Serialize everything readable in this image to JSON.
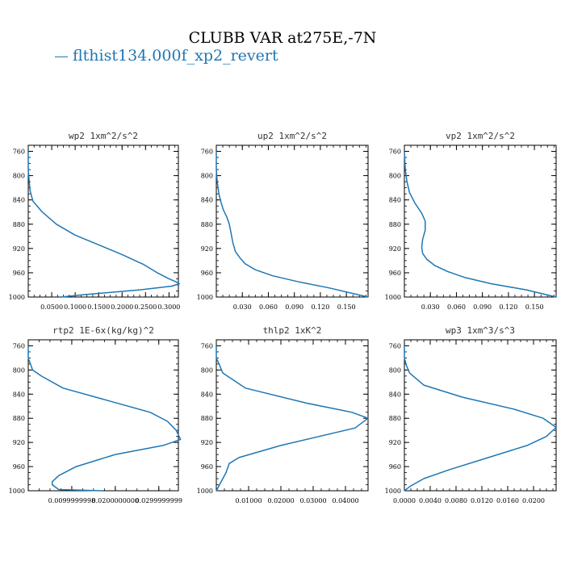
{
  "title": "CLUBB VAR at275E,-7N",
  "legend": [
    {
      "name": "flthist134.000f_xp2_revert",
      "color": "#1f77b4"
    }
  ],
  "chart_data": [
    {
      "type": "line",
      "title": "wp2  1xm^2/s^2",
      "ylim": [
        1000,
        750
      ],
      "xlim": [
        0,
        0.32
      ],
      "xticks": [
        0.05,
        0.1,
        0.15,
        0.2,
        0.25,
        0.3
      ],
      "xtick_labels": [
        "0.0500",
        "0.1000",
        "0.1500",
        "0.2000",
        "0.2500",
        "0.3000"
      ],
      "yticks": [
        760,
        800,
        840,
        880,
        920,
        960,
        1000
      ],
      "series": [
        {
          "x": [
            0.0,
            0.0,
            0.002,
            0.004,
            0.01,
            0.03,
            0.06,
            0.1,
            0.15,
            0.2,
            0.245,
            0.275,
            0.3,
            0.315,
            0.322,
            0.306,
            0.24,
            0.12,
            0.07
          ],
          "y": [
            760,
            790,
            810,
            825,
            842,
            860,
            880,
            898,
            914,
            930,
            946,
            960,
            970,
            975,
            978,
            982,
            988,
            996,
            1000
          ]
        }
      ]
    },
    {
      "type": "line",
      "title": "up2  1xm^2/s^2",
      "ylim": [
        1000,
        750
      ],
      "xlim": [
        0,
        0.175
      ],
      "xticks": [
        0.03,
        0.06,
        0.09,
        0.12,
        0.15
      ],
      "xtick_labels": [
        "0.030",
        "0.060",
        "0.090",
        "0.120",
        "0.150"
      ],
      "yticks": [
        760,
        800,
        840,
        880,
        920,
        960,
        1000
      ],
      "series": [
        {
          "x": [
            0.0,
            0.0,
            0.001,
            0.003,
            0.005,
            0.008,
            0.012,
            0.015,
            0.017,
            0.019,
            0.022,
            0.027,
            0.033,
            0.045,
            0.065,
            0.095,
            0.13,
            0.175
          ],
          "y": [
            760,
            790,
            810,
            830,
            842,
            856,
            868,
            880,
            895,
            910,
            925,
            935,
            945,
            955,
            965,
            975,
            985,
            1000
          ]
        }
      ]
    },
    {
      "type": "line",
      "title": "vp2  1xm^2/s^2",
      "ylim": [
        1000,
        750
      ],
      "xlim": [
        0,
        0.175
      ],
      "xticks": [
        0.03,
        0.06,
        0.09,
        0.12,
        0.15
      ],
      "xtick_labels": [
        "0.030",
        "0.060",
        "0.090",
        "0.120",
        "0.150"
      ],
      "yticks": [
        760,
        800,
        840,
        880,
        920,
        960,
        1000
      ],
      "series": [
        {
          "x": [
            0.0,
            0.001,
            0.003,
            0.006,
            0.012,
            0.02,
            0.024,
            0.024,
            0.021,
            0.02,
            0.021,
            0.026,
            0.035,
            0.05,
            0.07,
            0.1,
            0.14,
            0.175
          ],
          "y": [
            760,
            790,
            810,
            828,
            845,
            862,
            875,
            890,
            905,
            918,
            928,
            938,
            948,
            958,
            968,
            978,
            988,
            1000
          ]
        }
      ]
    },
    {
      "type": "line",
      "title": "rtp2  1E-6x(kg/kg)^2",
      "ylim": [
        1000,
        750
      ],
      "xlim": [
        0,
        0.0345
      ],
      "xticks": [
        0.01,
        0.02,
        0.03
      ],
      "xtick_labels": [
        "0.0099999998",
        "0.0200000000",
        "0.0299999999"
      ],
      "yticks": [
        760,
        800,
        840,
        880,
        920,
        960,
        1000
      ],
      "series": [
        {
          "x": [
            0.0,
            0.0,
            0.001,
            0.003,
            0.008,
            0.018,
            0.028,
            0.032,
            0.034,
            0.035,
            0.031,
            0.02,
            0.011,
            0.007,
            0.0055,
            0.0055,
            0.007,
            0.017
          ],
          "y": [
            760,
            780,
            800,
            810,
            830,
            850,
            870,
            885,
            900,
            915,
            925,
            940,
            960,
            975,
            985,
            990,
            998,
            1000
          ]
        }
      ]
    },
    {
      "type": "line",
      "title": "thlp2  1xK^2",
      "ylim": [
        1000,
        750
      ],
      "xlim": [
        0,
        0.047
      ],
      "xticks": [
        0.01,
        0.02,
        0.03,
        0.04
      ],
      "xtick_labels": [
        "0.01000",
        "0.02000",
        "0.03000",
        "0.04000"
      ],
      "yticks": [
        760,
        800,
        840,
        880,
        920,
        960,
        1000
      ],
      "series": [
        {
          "x": [
            0.0,
            0.0,
            0.001,
            0.002,
            0.009,
            0.028,
            0.042,
            0.047,
            0.043,
            0.02,
            0.007,
            0.004,
            0.003,
            0.001,
            0.0
          ],
          "y": [
            760,
            780,
            792,
            805,
            830,
            855,
            870,
            880,
            896,
            925,
            945,
            955,
            970,
            990,
            1000
          ]
        }
      ]
    },
    {
      "type": "line",
      "title": "wp3  1xm^3/s^3",
      "ylim": [
        1000,
        750
      ],
      "xlim": [
        0,
        0.0235
      ],
      "xticks": [
        0.0,
        0.004,
        0.008,
        0.012,
        0.016,
        0.02
      ],
      "xtick_labels": [
        "0.0000",
        "0.0040",
        "0.0080",
        "0.0120",
        "0.0160",
        "0.0200"
      ],
      "yticks": [
        760,
        800,
        840,
        880,
        920,
        960,
        1000
      ],
      "series": [
        {
          "x": [
            0.0,
            0.0,
            0.0003,
            0.0008,
            0.003,
            0.009,
            0.017,
            0.0215,
            0.0235,
            0.022,
            0.019,
            0.013,
            0.007,
            0.003,
            0.001,
            0.0
          ],
          "y": [
            760,
            780,
            792,
            805,
            825,
            845,
            865,
            880,
            895,
            910,
            925,
            945,
            965,
            980,
            992,
            1000
          ]
        }
      ]
    }
  ]
}
